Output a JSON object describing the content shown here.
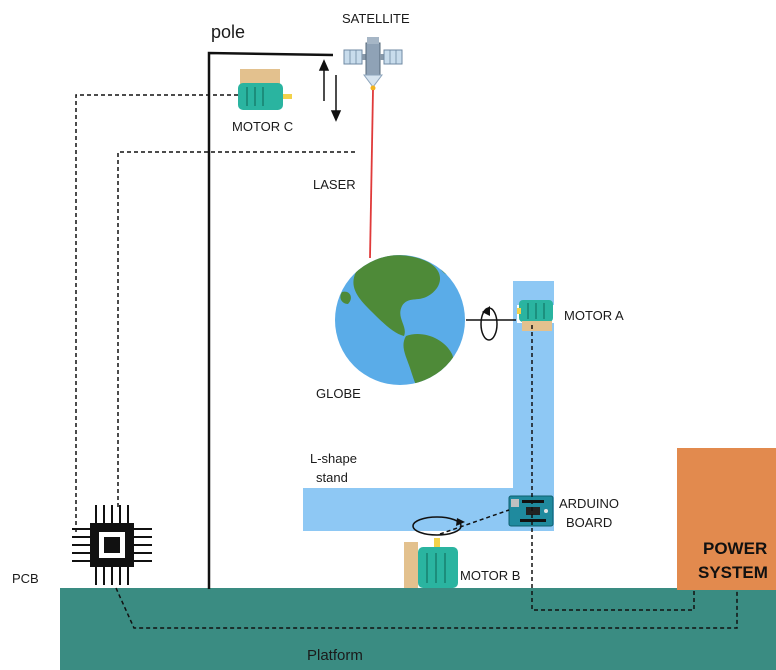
{
  "labels": {
    "pole": "pole",
    "satellite": "SATELLITE",
    "motor_c": "MOTOR C",
    "laser": "LASER",
    "globe": "GLOBE",
    "motor_a": "MOTOR A",
    "l_shape_line1": "L-shape",
    "l_shape_line2": "stand",
    "arduino_line1": "ARDUINO",
    "arduino_line2": "BOARD",
    "motor_b": "MOTOR B",
    "pcb": "PCB",
    "power_line1": "POWER",
    "power_line2": "SYSTEM",
    "platform": "Platform"
  },
  "colors": {
    "platform": "#3a8c82",
    "stand": "#8ec8f4",
    "power_system": "#e28a4e",
    "laser": "#e03a3a",
    "ocean": "#5aace8",
    "land": "#4e8a38",
    "motor_body": "#2ab4a0",
    "motor_mount": "#e3c18e"
  }
}
